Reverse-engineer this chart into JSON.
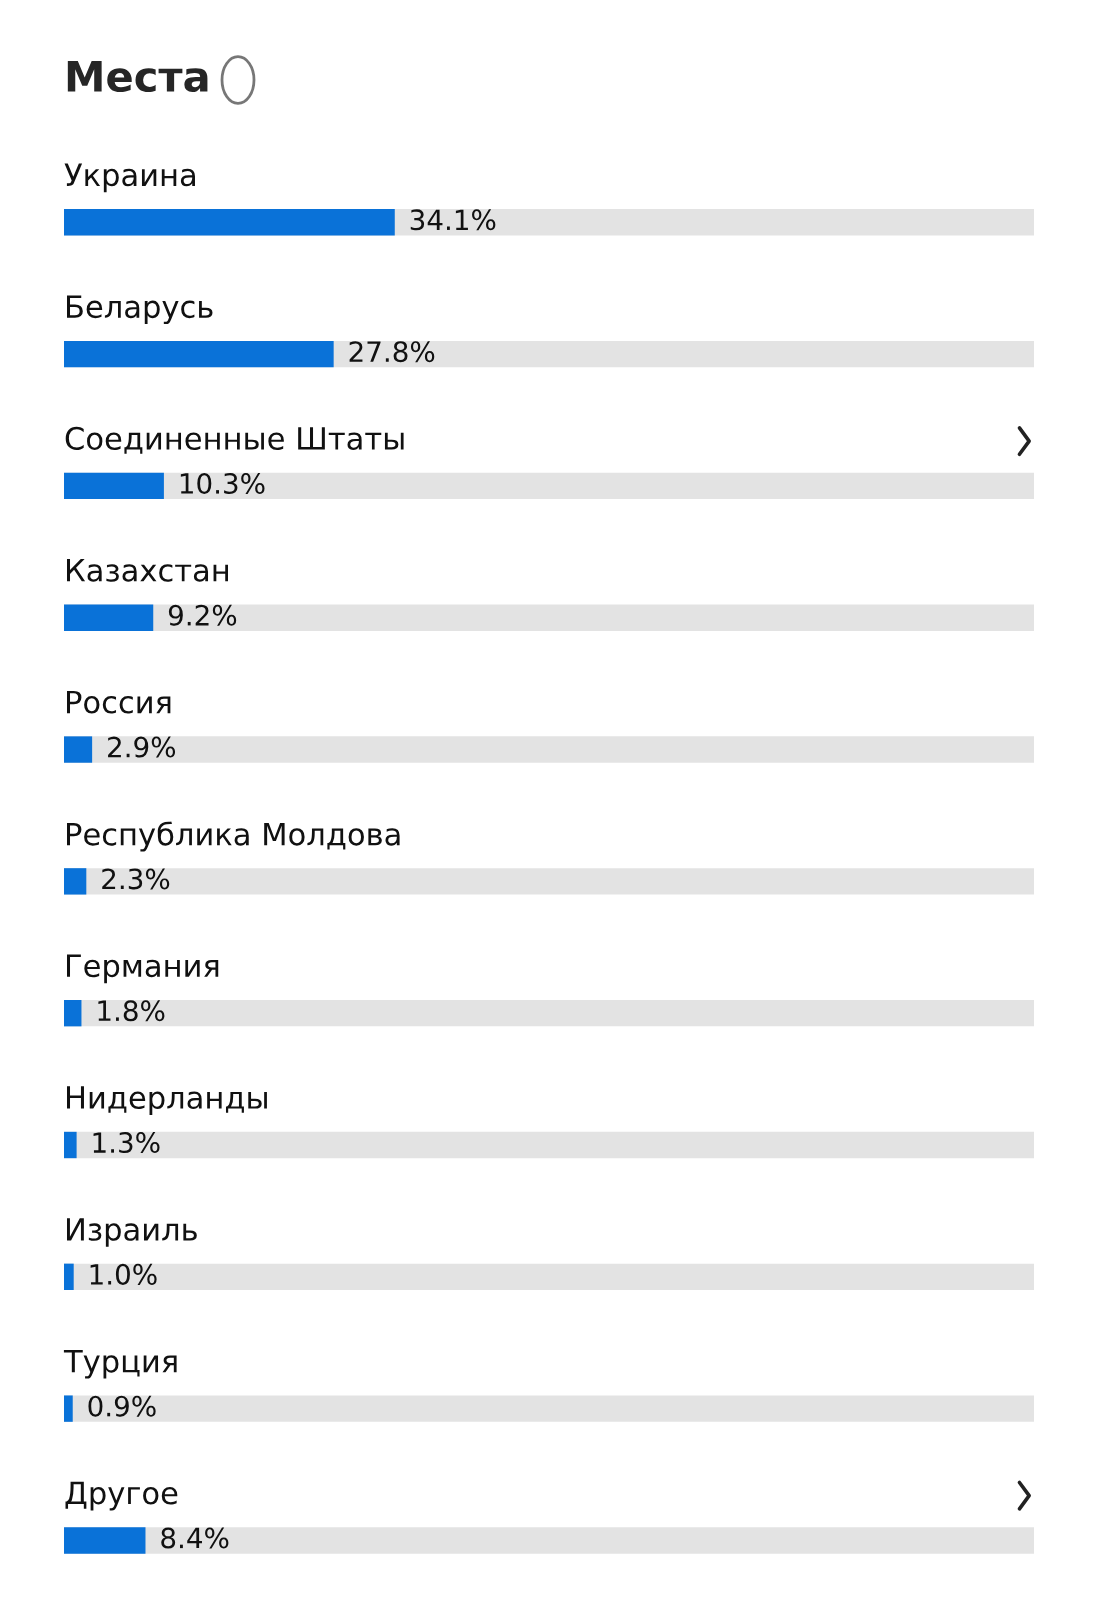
{
  "chart_data": {
    "type": "bar",
    "orientation": "horizontal",
    "title": "Места",
    "categories": [
      "Украина",
      "Беларусь",
      "Соединенные Штаты",
      "Казахстан",
      "Россия",
      "Республика Молдова",
      "Германия",
      "Нидерланды",
      "Израиль",
      "Турция",
      "Другое"
    ],
    "series": [
      {
        "color": "#0a72d8",
        "values": [
          34.1,
          27.8,
          10.3,
          9.2,
          2.9,
          2.3,
          1.8,
          1.3,
          1.0,
          0.9,
          8.4
        ],
        "value_labels": [
          "34.1%",
          "27.8%",
          "10.3%",
          "9.2%",
          "2.9%",
          "2.3%",
          "1.8%",
          "1.3%",
          "1.0%",
          "0.9%",
          "8.4%"
        ]
      }
    ],
    "xlim": [
      0,
      100
    ]
  }
}
